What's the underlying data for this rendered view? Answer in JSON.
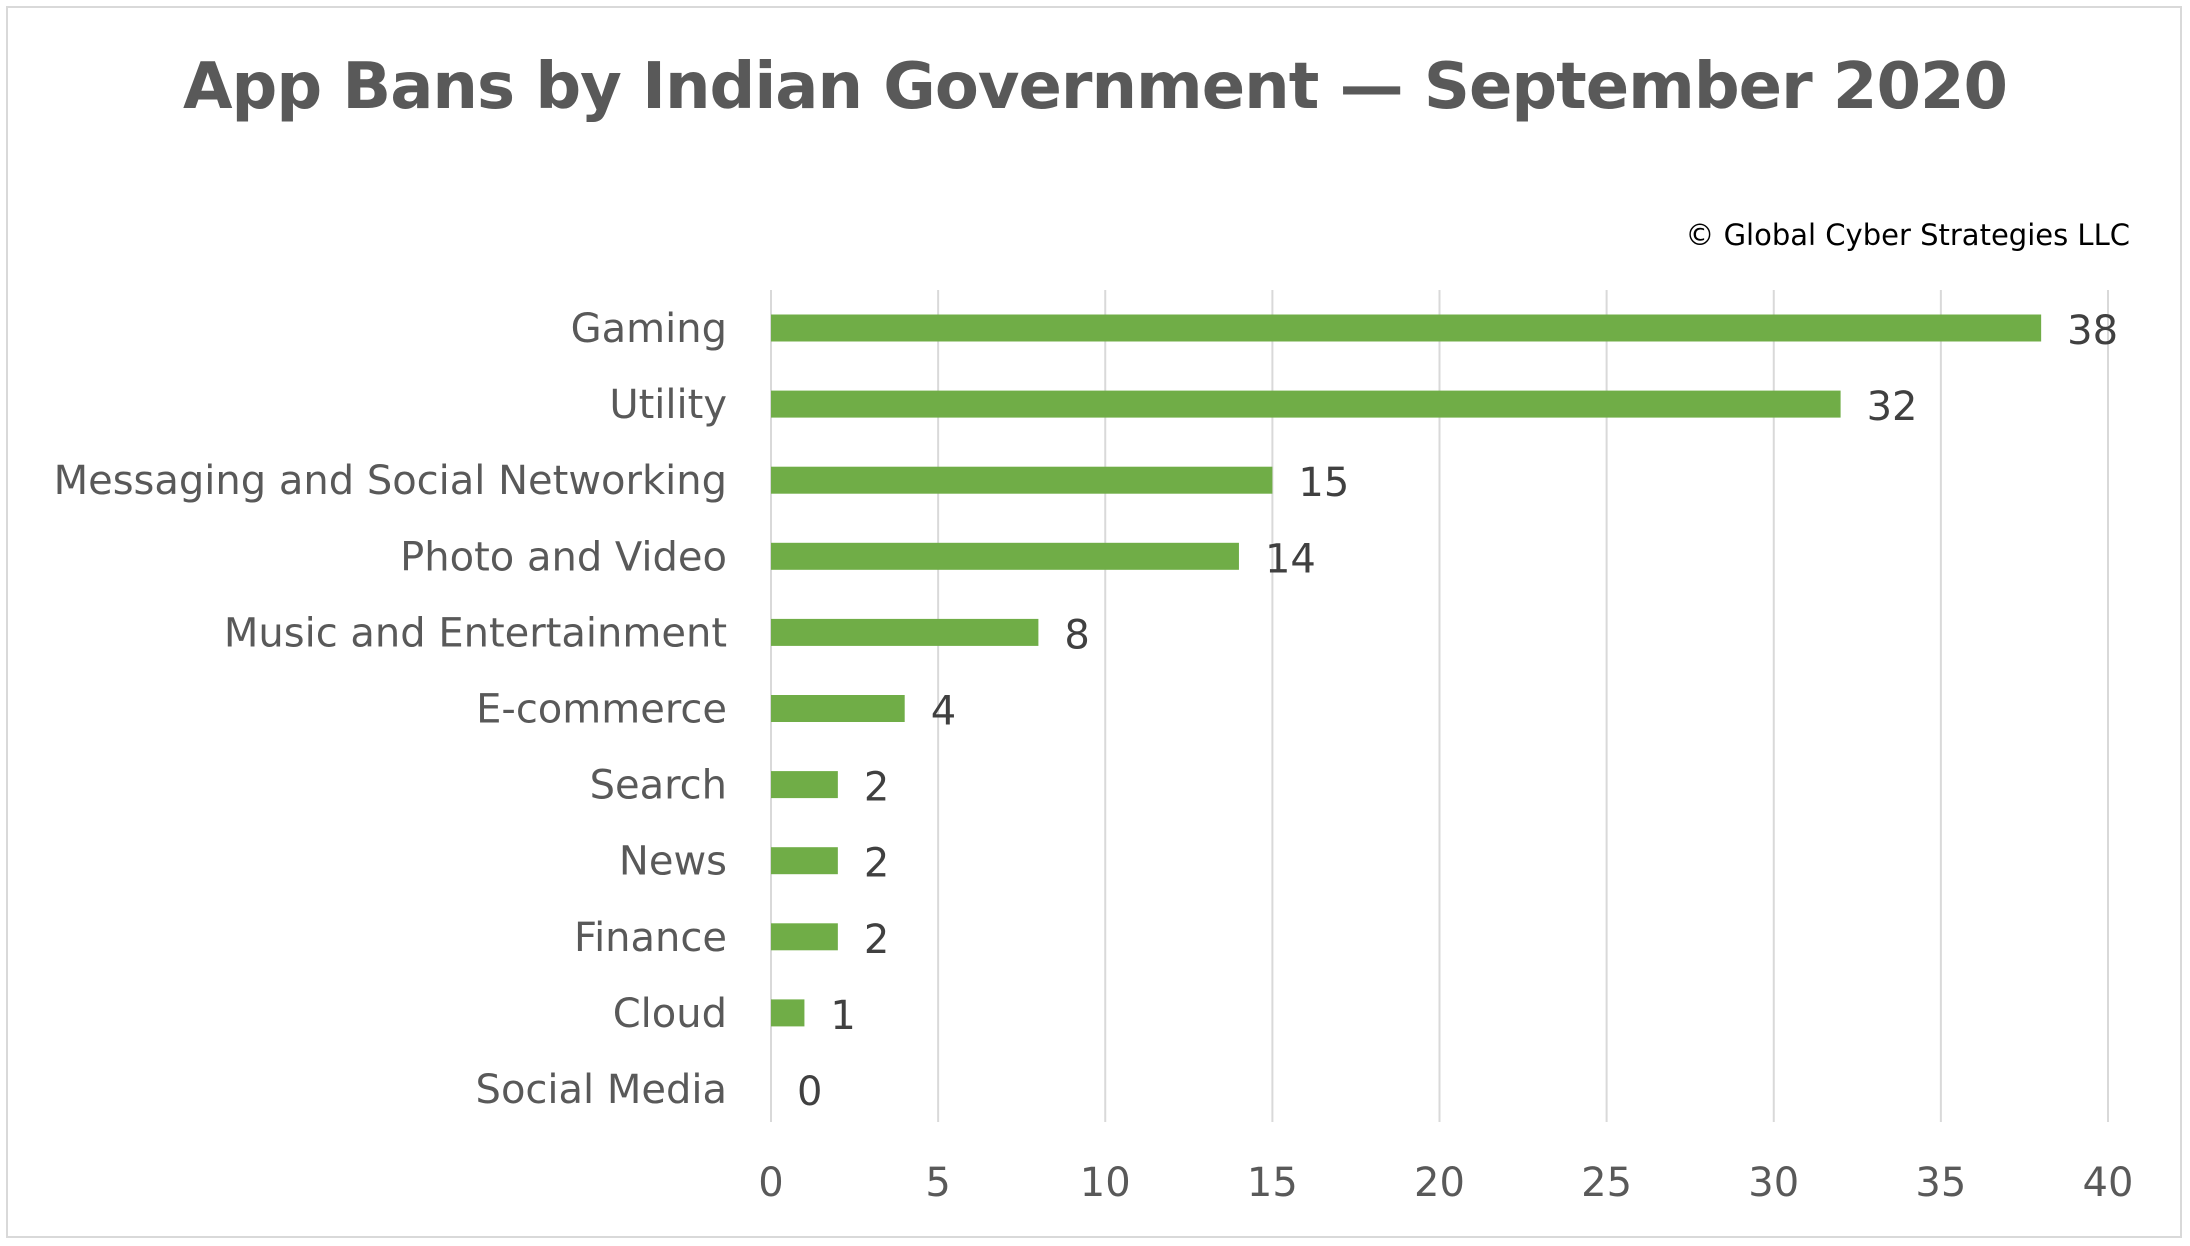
{
  "title": "App Bans by Indian Government — September 2020",
  "credit": "© Global Cyber Strategies LLC",
  "colors": {
    "bar": "#70ad47",
    "grid": "#d9d9d9",
    "text": "#595959",
    "data_label": "#404040",
    "border": "#d9d9d9"
  },
  "chart_data": {
    "type": "bar",
    "orientation": "horizontal",
    "title": "App Bans by Indian Government — September 2020",
    "categories": [
      "Gaming",
      "Utility",
      "Messaging and Social Networking",
      "Photo and Video",
      "Music and Entertainment",
      "E-commerce",
      "Search",
      "News",
      "Finance",
      "Cloud",
      "Social Media"
    ],
    "values": [
      38,
      32,
      15,
      14,
      8,
      4,
      2,
      2,
      2,
      1,
      0
    ],
    "data_labels": [
      "38",
      "32",
      "15",
      "14",
      "8",
      "4",
      "2",
      "2",
      "2",
      "1",
      "0"
    ],
    "xlabel": "",
    "ylabel": "",
    "xlim": [
      0,
      40
    ],
    "xticks": [
      0,
      5,
      10,
      15,
      20,
      25,
      30,
      35,
      40
    ],
    "xtick_labels": [
      "0",
      "5",
      "10",
      "15",
      "20",
      "25",
      "30",
      "35",
      "40"
    ],
    "grid": "vertical",
    "legend": "none"
  }
}
